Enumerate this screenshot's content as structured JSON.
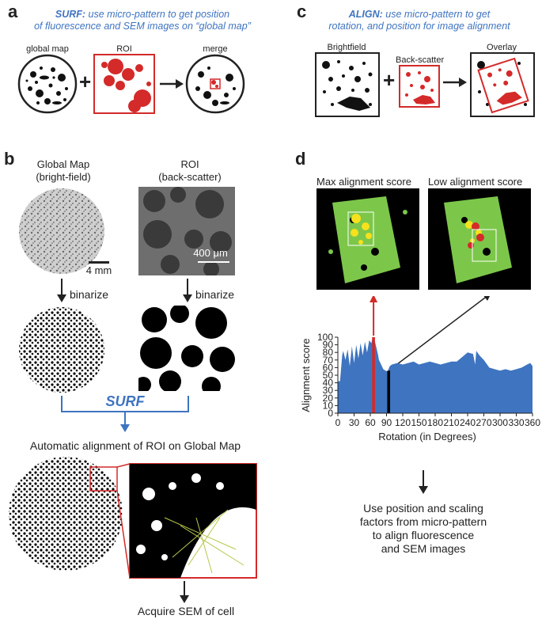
{
  "panel_a": {
    "letter": "a",
    "caption_bold": "SURF:",
    "caption_line1": " use  micro-pattern to get position",
    "caption_line2": "of fluorescence and SEM images on “global map”",
    "label_global_map": "global map",
    "label_roi": "ROI",
    "label_merge": "merge",
    "plus": "+"
  },
  "panel_b": {
    "letter": "b",
    "global_map_title_1": "Global Map",
    "global_map_title_2": "(bright-field)",
    "roi_title_1": "ROI",
    "roi_title_2": "(back-scatter)",
    "scale_left": "4 mm",
    "scale_right": "400 μm",
    "binarize_left": "binarize",
    "binarize_right": "binarize",
    "surf_label": "SURF",
    "auto_align": "Automatic alignment of ROI on Global Map",
    "acquire": "Acquire SEM of cell"
  },
  "panel_c": {
    "letter": "c",
    "caption_bold": "ALIGN:",
    "caption_line1": " use micro-pattern to get",
    "caption_line2": "rotation, and position for image alignment",
    "label_brightfield": "Brightfield",
    "label_backscatter": "Back-scatter",
    "label_overlay": "Overlay",
    "plus": "+"
  },
  "panel_d": {
    "letter": "d",
    "max_label": "Max alignment score",
    "low_label": "Low alignment score",
    "result_text": [
      "Use position and scaling",
      "factors from micro-pattern",
      "to align fluorescence",
      "and SEM images"
    ]
  },
  "colors": {
    "blue": "#3f74c0",
    "chart_blue": "#3f74c0",
    "red": "#d42a2a",
    "green": "#7cc74a",
    "yellow": "#f5e11c",
    "black": "#000000"
  },
  "chart_data": {
    "type": "area",
    "xlabel": "Rotation (in Degrees)",
    "ylabel": "Alignment score",
    "xlim": [
      0,
      360
    ],
    "ylim": [
      0,
      100
    ],
    "xticks": [
      0,
      30,
      60,
      90,
      120,
      150,
      180,
      210,
      240,
      270,
      300,
      330,
      360
    ],
    "yticks": [
      0,
      10,
      20,
      30,
      40,
      50,
      60,
      70,
      80,
      90,
      100
    ],
    "x": [
      0,
      4,
      8,
      10,
      14,
      18,
      22,
      26,
      30,
      34,
      38,
      42,
      46,
      50,
      54,
      58,
      62,
      64,
      66,
      68,
      70,
      72,
      74,
      76,
      80,
      84,
      88,
      92,
      96,
      100,
      110,
      120,
      130,
      140,
      150,
      160,
      170,
      180,
      190,
      200,
      210,
      220,
      230,
      240,
      250,
      254,
      256,
      258,
      262,
      270,
      280,
      290,
      300,
      310,
      320,
      330,
      340,
      350,
      356,
      360
    ],
    "y": [
      42,
      42,
      76,
      82,
      70,
      84,
      62,
      88,
      66,
      90,
      72,
      92,
      76,
      94,
      80,
      96,
      92,
      99,
      100,
      96,
      90,
      84,
      78,
      70,
      64,
      58,
      56,
      55,
      62,
      64,
      66,
      64,
      66,
      68,
      64,
      66,
      68,
      66,
      64,
      66,
      68,
      68,
      74,
      80,
      78,
      64,
      82,
      80,
      76,
      70,
      60,
      58,
      56,
      58,
      56,
      58,
      60,
      64,
      66,
      62
    ],
    "highlights": [
      {
        "x": 66,
        "y": 100,
        "color": "#d42a2a",
        "label": "Max alignment score"
      },
      {
        "x": 94,
        "y": 56,
        "color": "#000000",
        "label": "Low alignment score"
      }
    ]
  }
}
